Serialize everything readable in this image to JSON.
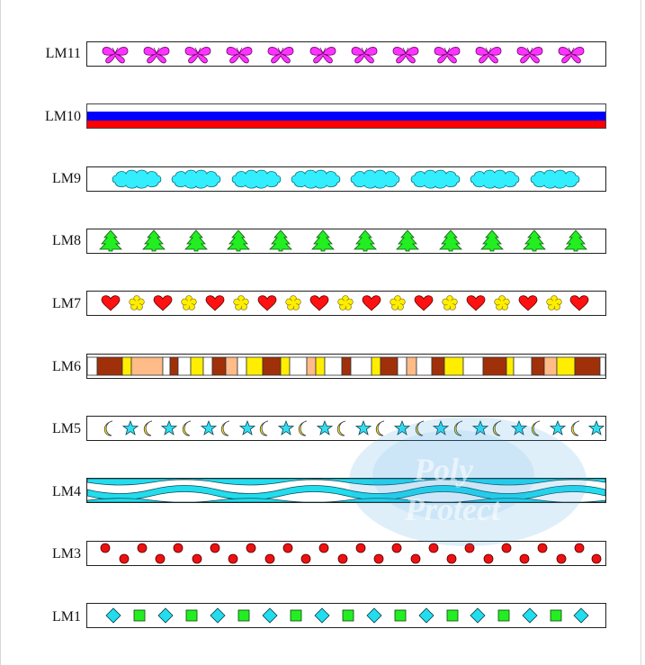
{
  "strips": [
    {
      "label": "LM11",
      "pattern": "butterflies",
      "colors": {
        "fill": "#ff33ff"
      }
    },
    {
      "label": "LM10",
      "pattern": "flag-stripes",
      "colors": {
        "top": "#ffffff",
        "middle": "#0000ff",
        "bottom": "#ff0000"
      }
    },
    {
      "label": "LM9",
      "pattern": "clouds",
      "colors": {
        "fill": "#33eeff"
      }
    },
    {
      "label": "LM8",
      "pattern": "trees",
      "colors": {
        "fill": "#22ee22"
      }
    },
    {
      "label": "LM7",
      "pattern": "hearts-and-flowers",
      "colors": {
        "heart": "#ff1111",
        "flower": "#ffee00"
      }
    },
    {
      "label": "LM6",
      "pattern": "color-blocks",
      "colors": {
        "brown": "#a0300a",
        "yellow": "#ffee00",
        "peach": "#ffbb88",
        "white": "#ffffff"
      }
    },
    {
      "label": "LM5",
      "pattern": "moons-and-stars",
      "colors": {
        "moon": "#ffee22",
        "star": "#33ddee"
      }
    },
    {
      "label": "LM4",
      "pattern": "waves",
      "colors": {
        "wave": "#22ddee"
      }
    },
    {
      "label": "LM3",
      "pattern": "dots",
      "colors": {
        "dot": "#ee1111"
      }
    },
    {
      "label": "LM1",
      "pattern": "diamonds-and-squares",
      "colors": {
        "diamond": "#22ddee",
        "square": "#22ee22"
      }
    }
  ],
  "watermark": {
    "line1": "Poly",
    "line2": "Protect",
    "color": "#3399dd"
  }
}
